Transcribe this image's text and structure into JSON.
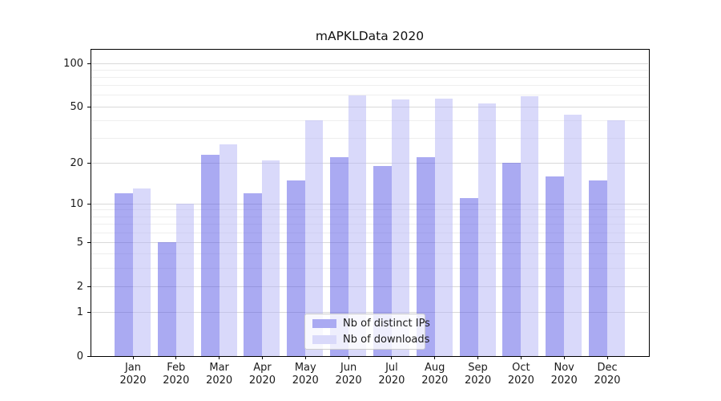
{
  "title": "mAPKLData 2020",
  "chart_data": {
    "type": "bar",
    "title": "mAPKLData 2020",
    "categories": [
      "Jan 2020",
      "Feb 2020",
      "Mar 2020",
      "Apr 2020",
      "May 2020",
      "Jun 2020",
      "Jul 2020",
      "Aug 2020",
      "Sep 2020",
      "Oct 2020",
      "Nov 2020",
      "Dec 2020"
    ],
    "x_tick_months": [
      "Jan",
      "Feb",
      "Mar",
      "Apr",
      "May",
      "Jun",
      "Jul",
      "Aug",
      "Sep",
      "Oct",
      "Nov",
      "Dec"
    ],
    "x_tick_year": "2020",
    "series": [
      {
        "name": "Nb of distinct IPs",
        "color": "rgba(85,85,230,0.5)",
        "legend_color": "#aaaaf2",
        "values": [
          12,
          5,
          23,
          12,
          15,
          22,
          19,
          22,
          11,
          20,
          16,
          15
        ]
      },
      {
        "name": "Nb of downloads",
        "color": "rgba(180,180,245,0.5)",
        "legend_color": "#d9d9fa",
        "values": [
          13,
          10,
          27,
          21,
          40,
          60,
          56,
          57,
          53,
          59,
          44,
          40
        ]
      }
    ],
    "yscale": "log1p-symlog",
    "ylabel": "",
    "xlabel": "",
    "ylim": [
      0,
      126
    ],
    "yticks": [
      100,
      50,
      20,
      10,
      5,
      2,
      1,
      0
    ],
    "minor_gridline_values": [
      3,
      4,
      6,
      7,
      8,
      9,
      30,
      40,
      60,
      70,
      80,
      90
    ],
    "major_gridline_values": [
      1,
      2,
      5,
      10,
      20,
      50,
      100
    ],
    "grid": "both",
    "legend_position": "lower center"
  },
  "colors": {
    "axis": "#000000",
    "major_grid": "#d9d9d9",
    "minor_grid": "#eeeeee",
    "legend_border": "#cccccc",
    "text": "#1a1a1a",
    "background": "#ffffff"
  }
}
